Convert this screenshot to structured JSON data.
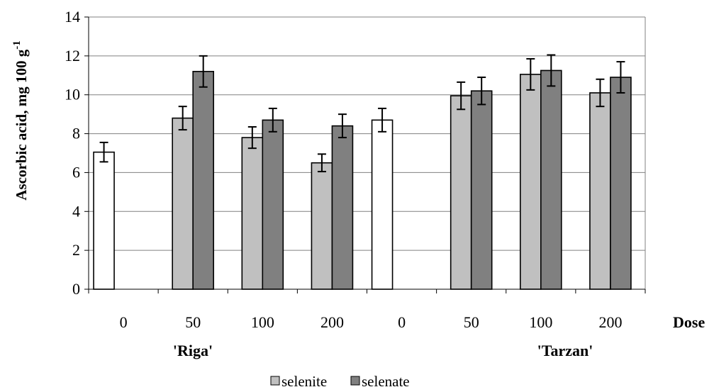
{
  "chart_data": {
    "type": "bar",
    "ylabel": "Ascorbic acid, mg 100 g",
    "ylabel_sup": "-1",
    "xlabel": "Dose",
    "ylim": [
      0,
      14
    ],
    "yticks": [
      0,
      2,
      4,
      6,
      8,
      10,
      12,
      14
    ],
    "grid": "horizontal",
    "legend_position": "bottom",
    "categories": [
      "0",
      "50",
      "100",
      "200",
      "0",
      "50",
      "100",
      "200"
    ],
    "groups": [
      {
        "label": "'Riga'",
        "span": [
          0,
          3
        ]
      },
      {
        "label": "'Tarzan'",
        "span": [
          4,
          7
        ]
      }
    ],
    "control_color": "#ffffff",
    "series": [
      {
        "name": "selenite",
        "color": "#c0c0c0",
        "values": [
          7.05,
          8.8,
          7.8,
          6.5,
          8.7,
          9.95,
          11.05,
          10.1
        ],
        "errors": [
          0.5,
          0.6,
          0.55,
          0.45,
          0.6,
          0.7,
          0.8,
          0.7
        ]
      },
      {
        "name": "selenate",
        "color": "#808080",
        "values": [
          null,
          11.2,
          8.7,
          8.4,
          null,
          10.2,
          11.25,
          10.9
        ],
        "errors": [
          null,
          0.8,
          0.6,
          0.6,
          null,
          0.7,
          0.8,
          0.8
        ]
      }
    ]
  }
}
